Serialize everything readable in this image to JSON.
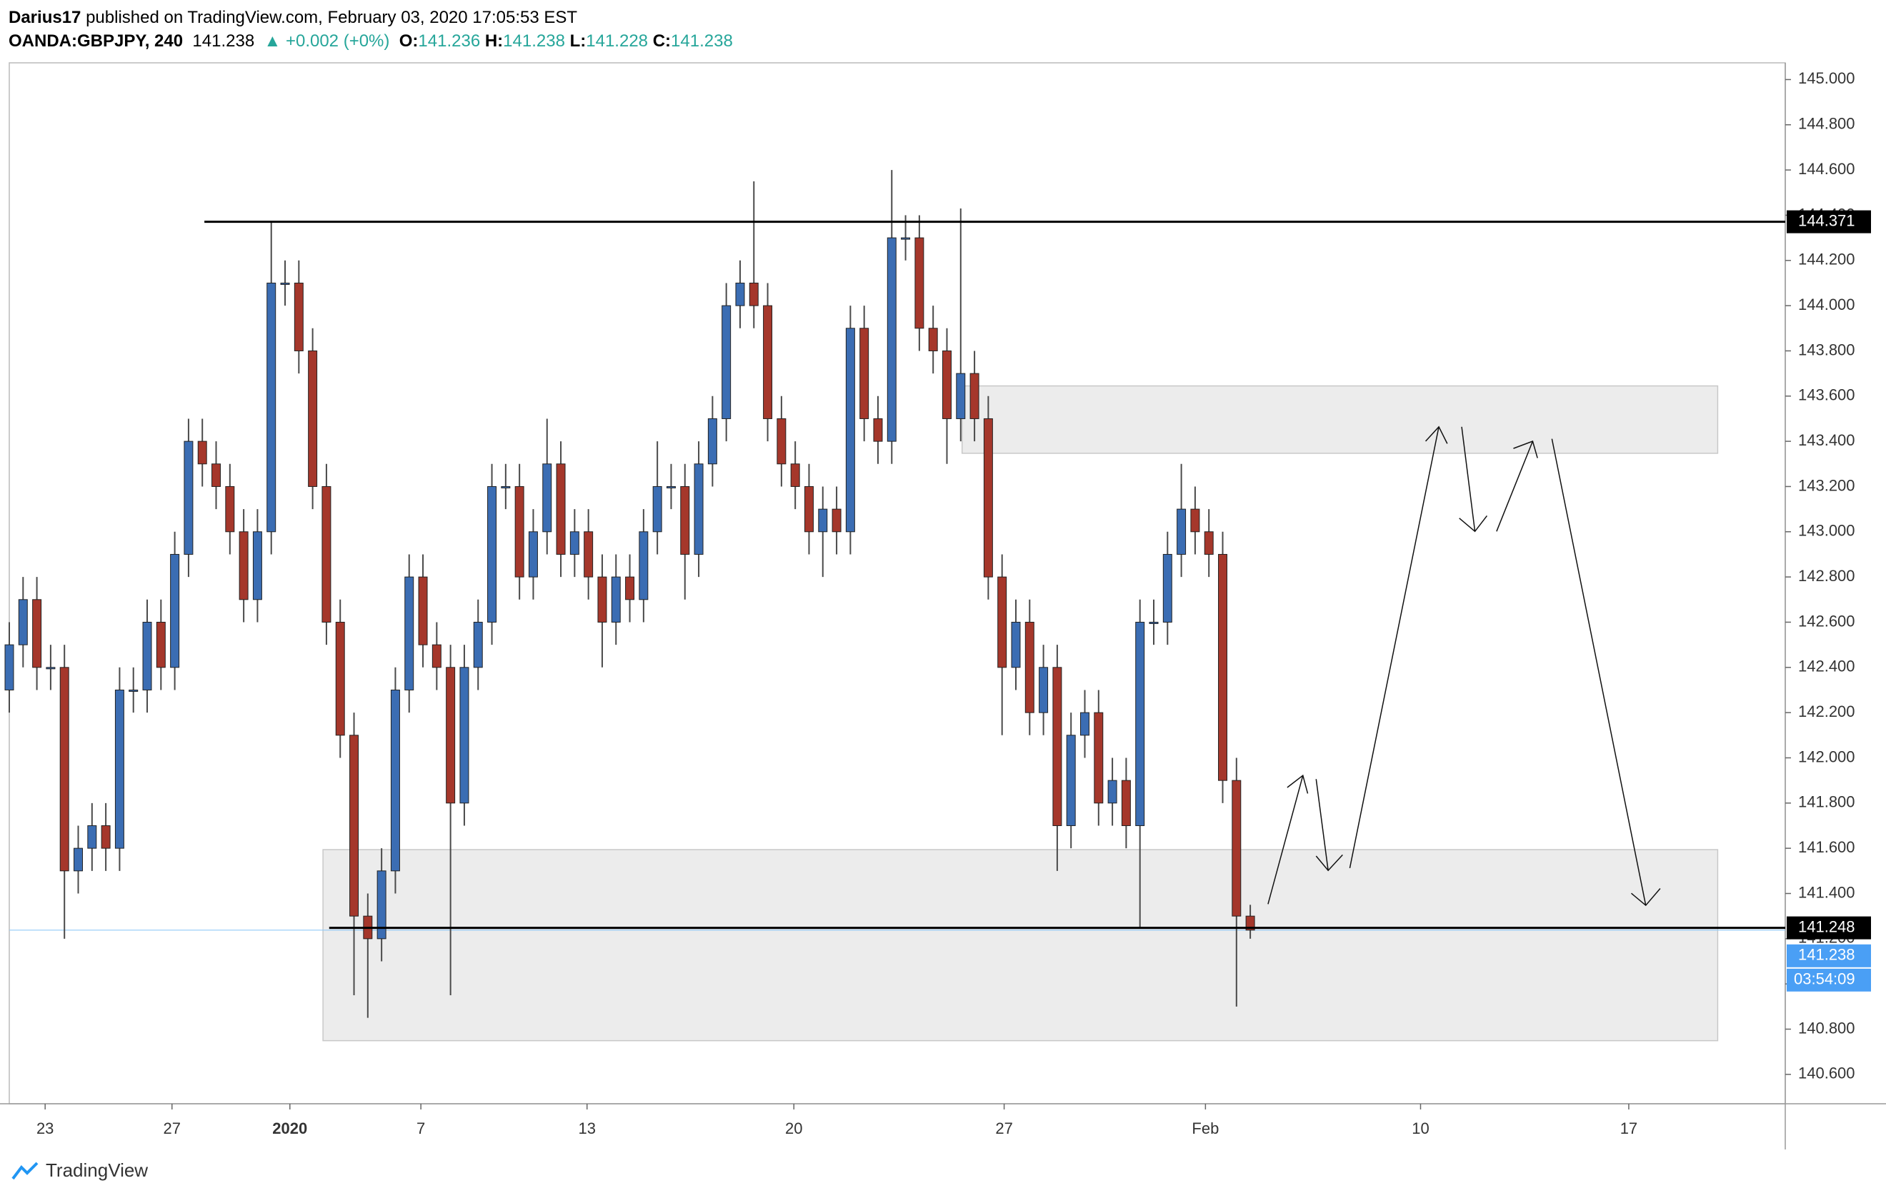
{
  "header": {
    "user": "Darius17",
    "published": "published on TradingView.com, February 03, 2020 17:05:53 EST",
    "symbol": "OANDA:GBPJPY, 240",
    "price": "141.238",
    "change": "▲ +0.002 (+0%)",
    "ohlc": [
      {
        "label": "O:",
        "value": "141.236"
      },
      {
        "label": "H:",
        "value": "141.238"
      },
      {
        "label": "L:",
        "value": "141.228"
      },
      {
        "label": "C:",
        "value": "141.238"
      }
    ]
  },
  "footer": {
    "brand": "TradingView"
  },
  "countdown": "03:54:09",
  "chart_data": {
    "type": "candlestick",
    "x": [
      0,
      2,
      4,
      6,
      8,
      10,
      12,
      14,
      16,
      18,
      20,
      22,
      24,
      26,
      28,
      30,
      32,
      34,
      36,
      38,
      40,
      42,
      44,
      46,
      48,
      50,
      52,
      54,
      56,
      58,
      60,
      62,
      64,
      66,
      68,
      70,
      72,
      74,
      76,
      78,
      80,
      82,
      84,
      86,
      88,
      90,
      92,
      94,
      96,
      98,
      100,
      102,
      104,
      106,
      108,
      110,
      112,
      114,
      116,
      118,
      120,
      122,
      124,
      126,
      128,
      130,
      132,
      134,
      136,
      138,
      140,
      142,
      144,
      146,
      148,
      150,
      152,
      154,
      156,
      158,
      160,
      162,
      164,
      166,
      168,
      170,
      172,
      174,
      176,
      178,
      180
    ],
    "open": [
      142.3,
      142.5,
      142.7,
      142.4,
      142.4,
      141.5,
      141.6,
      141.7,
      141.6,
      142.3,
      142.3,
      142.6,
      142.4,
      142.9,
      143.4,
      143.3,
      143.2,
      143.0,
      142.7,
      143.0,
      144.1,
      144.1,
      143.8,
      143.2,
      142.6,
      142.1,
      141.3,
      141.2,
      141.5,
      142.3,
      142.8,
      142.5,
      142.4,
      141.8,
      142.4,
      142.6,
      143.2,
      143.2,
      142.8,
      143.0,
      143.3,
      142.9,
      143.0,
      142.8,
      142.6,
      142.8,
      142.7,
      143.0,
      143.2,
      143.2,
      142.9,
      143.3,
      143.5,
      144.0,
      144.1,
      144.0,
      143.5,
      143.3,
      143.2,
      143.0,
      143.1,
      143.0,
      143.9,
      143.5,
      143.4,
      144.3,
      144.3,
      143.9,
      143.8,
      143.5,
      143.7,
      143.5,
      142.8,
      142.4,
      142.6,
      142.2,
      142.4,
      141.7,
      142.1,
      142.2,
      141.8,
      141.9,
      141.7,
      142.6,
      142.6,
      142.9,
      143.1,
      143.0,
      142.9,
      141.9,
      141.3
    ],
    "high": [
      142.6,
      142.8,
      142.8,
      142.5,
      142.5,
      141.7,
      141.8,
      141.8,
      142.4,
      142.4,
      142.7,
      142.7,
      143.0,
      143.5,
      143.5,
      143.4,
      143.3,
      143.1,
      143.1,
      144.37,
      144.2,
      144.2,
      143.9,
      143.3,
      142.7,
      142.2,
      141.4,
      141.6,
      142.4,
      142.9,
      142.9,
      142.6,
      142.5,
      142.5,
      142.7,
      143.3,
      143.3,
      143.3,
      143.1,
      143.5,
      143.4,
      143.1,
      143.1,
      142.9,
      142.9,
      142.9,
      143.1,
      143.4,
      143.3,
      143.3,
      143.4,
      143.6,
      144.1,
      144.2,
      144.55,
      144.1,
      143.6,
      143.4,
      143.3,
      143.2,
      143.2,
      144.0,
      144.0,
      143.6,
      144.6,
      144.4,
      144.4,
      144.0,
      143.9,
      144.43,
      143.8,
      143.6,
      142.9,
      142.7,
      142.7,
      142.5,
      142.5,
      142.2,
      142.3,
      142.3,
      142.0,
      142.0,
      142.7,
      142.7,
      143.0,
      143.3,
      143.2,
      143.1,
      143.0,
      142.0,
      141.35
    ],
    "low": [
      142.2,
      142.4,
      142.3,
      142.3,
      141.2,
      141.4,
      141.5,
      141.5,
      141.5,
      142.2,
      142.2,
      142.3,
      142.3,
      142.8,
      143.2,
      143.1,
      142.9,
      142.6,
      142.6,
      142.9,
      144.0,
      143.7,
      143.1,
      142.5,
      142.0,
      140.95,
      140.85,
      141.1,
      141.4,
      142.2,
      142.4,
      142.3,
      140.95,
      141.7,
      142.3,
      142.5,
      143.1,
      142.7,
      142.7,
      142.9,
      142.8,
      142.8,
      142.7,
      142.4,
      142.5,
      142.6,
      142.6,
      142.9,
      143.1,
      142.7,
      142.8,
      143.2,
      143.4,
      143.9,
      143.9,
      143.4,
      143.2,
      143.1,
      142.9,
      142.8,
      142.9,
      142.9,
      143.4,
      143.3,
      143.3,
      144.2,
      143.8,
      143.7,
      143.3,
      143.4,
      143.4,
      142.7,
      142.1,
      142.3,
      142.1,
      142.1,
      141.5,
      141.6,
      142.0,
      141.7,
      141.7,
      141.6,
      141.25,
      142.5,
      142.5,
      142.8,
      142.9,
      142.8,
      141.8,
      140.9,
      141.2
    ],
    "close": [
      142.5,
      142.7,
      142.4,
      142.4,
      141.5,
      141.6,
      141.7,
      141.6,
      142.3,
      142.3,
      142.6,
      142.4,
      142.9,
      143.4,
      143.3,
      143.2,
      143.0,
      142.7,
      143.0,
      144.1,
      144.1,
      143.8,
      143.2,
      142.6,
      142.1,
      141.3,
      141.2,
      141.5,
      142.3,
      142.8,
      142.5,
      142.4,
      141.8,
      142.4,
      142.6,
      143.2,
      143.2,
      142.8,
      143.0,
      143.3,
      142.9,
      143.0,
      142.8,
      142.6,
      142.8,
      142.7,
      143.0,
      143.2,
      143.2,
      142.9,
      143.3,
      143.5,
      144.0,
      144.1,
      144.0,
      143.5,
      143.3,
      143.2,
      143.0,
      143.1,
      143.0,
      143.9,
      143.5,
      143.4,
      144.3,
      144.3,
      143.9,
      143.8,
      143.5,
      143.7,
      143.5,
      142.8,
      142.4,
      142.6,
      142.2,
      142.4,
      141.7,
      142.1,
      142.2,
      141.8,
      141.9,
      141.7,
      142.6,
      142.6,
      142.9,
      143.1,
      143.0,
      142.9,
      141.9,
      141.3,
      141.238
    ],
    "up_color": "#3b6db3",
    "down_color": "#a5372b",
    "wick_color": "#4a4a4a",
    "xlim": [
      0,
      257.6
    ],
    "xticks": [
      {
        "value": 5.2,
        "label": "23"
      },
      {
        "value": 23.6,
        "label": "27"
      },
      {
        "value": 40.7,
        "label": "2020"
      },
      {
        "value": 59.7,
        "label": "7"
      },
      {
        "value": 83.8,
        "label": "13"
      },
      {
        "value": 113.8,
        "label": "20"
      },
      {
        "value": 144.3,
        "label": "27"
      },
      {
        "value": 173.5,
        "label": "Feb"
      },
      {
        "value": 204.7,
        "label": "10"
      },
      {
        "value": 234.9,
        "label": "17"
      }
    ],
    "ylim": [
      140.47,
      145.074
    ],
    "yticks": [
      {
        "value": 140.6,
        "label": "140.600"
      },
      {
        "value": 140.8,
        "label": "140.800"
      },
      {
        "value": 141.0,
        "label": "141.000"
      },
      {
        "value": 141.2,
        "label": "141.200"
      },
      {
        "value": 141.4,
        "label": "141.400"
      },
      {
        "value": 141.6,
        "label": "141.600"
      },
      {
        "value": 141.8,
        "label": "141.800"
      },
      {
        "value": 142.0,
        "label": "142.000"
      },
      {
        "value": 142.2,
        "label": "142.200"
      },
      {
        "value": 142.4,
        "label": "142.400"
      },
      {
        "value": 142.6,
        "label": "142.600"
      },
      {
        "value": 142.8,
        "label": "142.800"
      },
      {
        "value": 143.0,
        "label": "143.000"
      },
      {
        "value": 143.2,
        "label": "143.200"
      },
      {
        "value": 143.4,
        "label": "143.400"
      },
      {
        "value": 143.6,
        "label": "143.600"
      },
      {
        "value": 143.8,
        "label": "143.800"
      },
      {
        "value": 144.0,
        "label": "144.000"
      },
      {
        "value": 144.2,
        "label": "144.200"
      },
      {
        "value": 144.4,
        "label": "144.400"
      },
      {
        "value": 144.6,
        "label": "144.600"
      },
      {
        "value": 144.8,
        "label": "144.800"
      },
      {
        "value": 145.0,
        "label": "145.000"
      }
    ],
    "grid": false,
    "zones": [
      {
        "x": [
          138.2,
          247.8
        ],
        "y": [
          143.347,
          143.645
        ]
      },
      {
        "x": [
          45.5,
          247.8
        ],
        "y": [
          140.749,
          141.594
        ]
      }
    ],
    "hlines": [
      {
        "value": 144.371,
        "x0": 28.3
      },
      {
        "value": 141.248,
        "x0": 46.4
      }
    ]
  }
}
